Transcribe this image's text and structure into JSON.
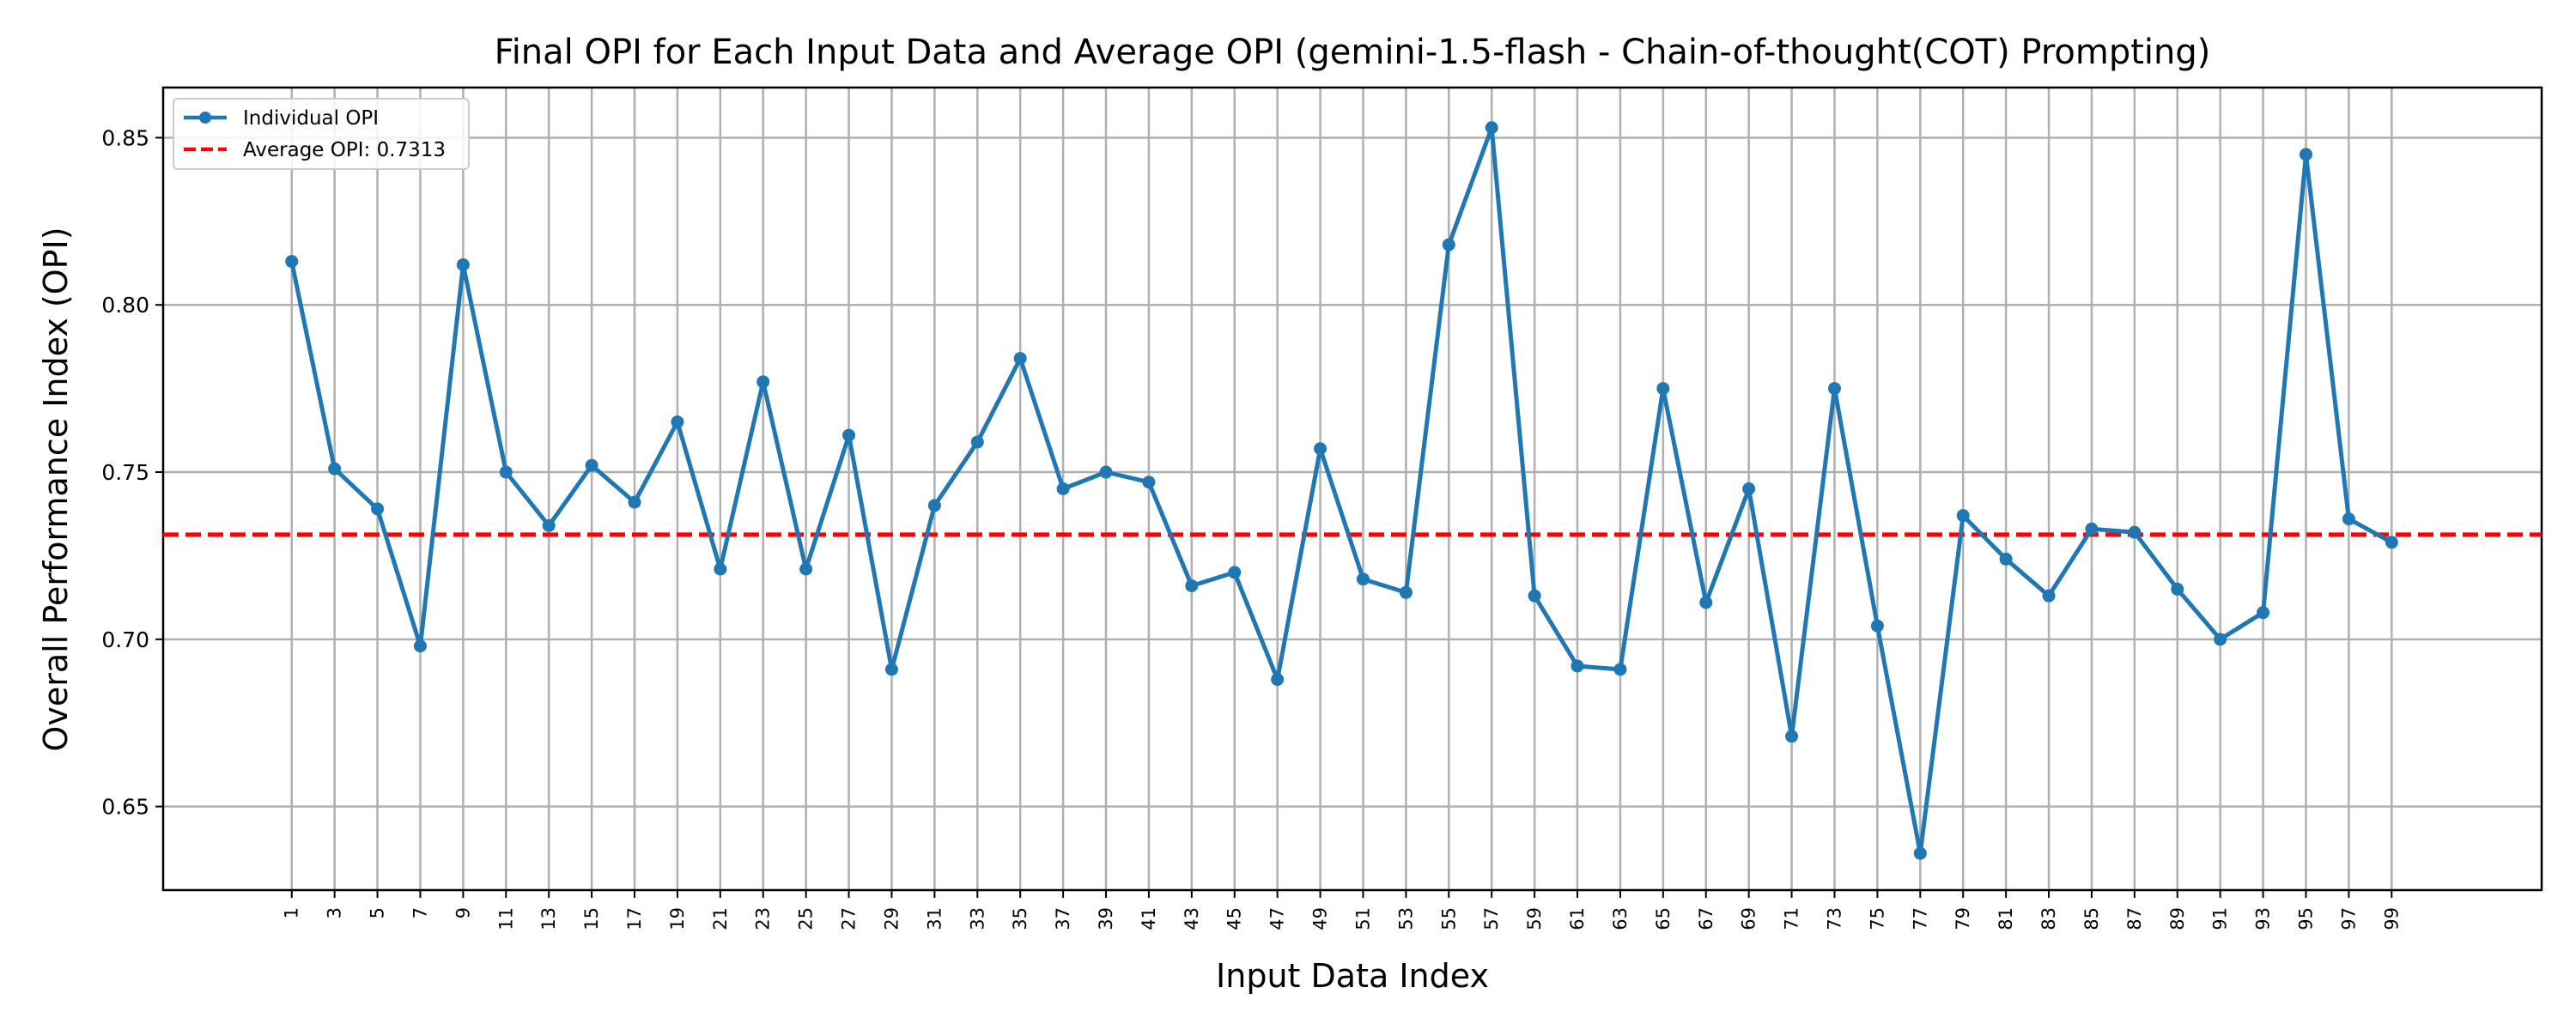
{
  "chart_data": {
    "type": "line",
    "title": "Final OPI for Each Input Data and Average OPI (gemini-1.5-flash - Chain-of-thought(COT) Prompting)",
    "xlabel": "Input Data Index",
    "ylabel": "Overall Performance Index (OPI)",
    "ylim": [
      0.625,
      0.865
    ],
    "xlim": [
      -5,
      106
    ],
    "yticks": [
      0.65,
      0.7,
      0.75,
      0.8,
      0.85
    ],
    "ytick_labels": [
      "0.65",
      "0.70",
      "0.75",
      "0.80",
      "0.85"
    ],
    "xticks": [
      1,
      3,
      5,
      7,
      9,
      11,
      13,
      15,
      17,
      19,
      21,
      23,
      25,
      27,
      29,
      31,
      33,
      35,
      37,
      39,
      41,
      43,
      45,
      47,
      49,
      51,
      53,
      55,
      57,
      59,
      61,
      63,
      65,
      67,
      69,
      71,
      73,
      75,
      77,
      79,
      81,
      83,
      85,
      87,
      89,
      91,
      93,
      95,
      97,
      99
    ],
    "grid": true,
    "legend_position": "top-left",
    "series": [
      {
        "name": "Individual OPI",
        "color": "#1f77b4",
        "style": "solid-with-markers",
        "x": [
          1,
          3,
          5,
          7,
          9,
          11,
          13,
          15,
          17,
          19,
          21,
          23,
          25,
          27,
          29,
          31,
          33,
          35,
          37,
          39,
          41,
          43,
          45,
          47,
          49,
          51,
          53,
          55,
          57,
          59,
          61,
          63,
          65,
          67,
          69,
          71,
          73,
          75,
          77,
          79,
          81,
          83,
          85,
          87,
          89,
          91,
          93,
          95,
          97,
          99
        ],
        "values": [
          0.813,
          0.751,
          0.739,
          0.698,
          0.812,
          0.75,
          0.734,
          0.752,
          0.741,
          0.765,
          0.721,
          0.777,
          0.721,
          0.761,
          0.691,
          0.74,
          0.759,
          0.784,
          0.745,
          0.75,
          0.747,
          0.716,
          0.72,
          0.688,
          0.757,
          0.718,
          0.714,
          0.818,
          0.853,
          0.713,
          0.692,
          0.691,
          0.775,
          0.711,
          0.745,
          0.671,
          0.775,
          0.704,
          0.636,
          0.737,
          0.724,
          0.713,
          0.733,
          0.732,
          0.715,
          0.7,
          0.708,
          0.845,
          0.736,
          0.729
        ]
      },
      {
        "name": "Average OPI: 0.7313",
        "color": "#ff0000",
        "style": "dashed",
        "value": 0.7313
      }
    ]
  }
}
